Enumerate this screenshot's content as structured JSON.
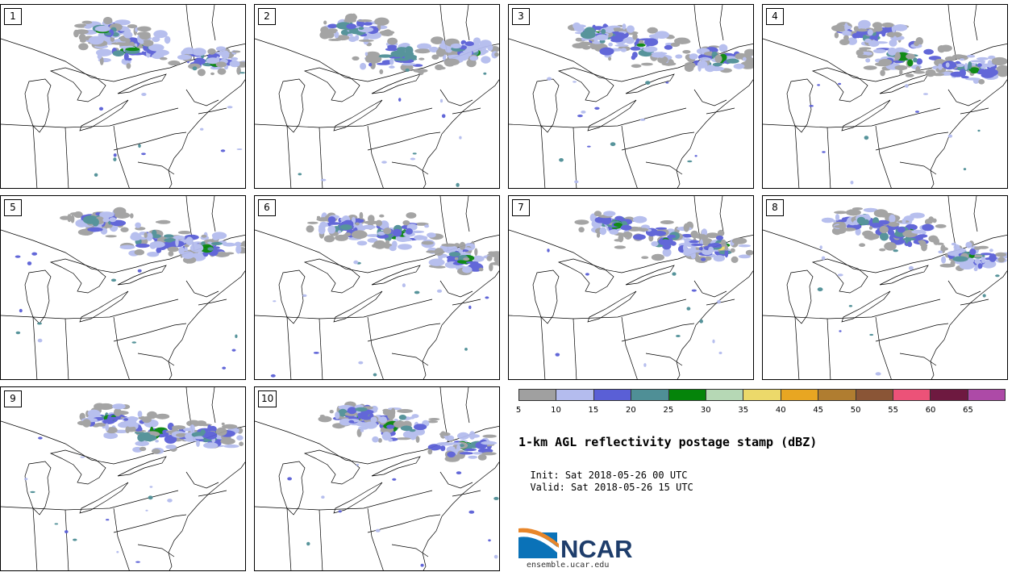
{
  "figure": {
    "title": "1-km AGL reflectivity postage stamp (dBZ)",
    "init_label": "Init:",
    "init_value": "Sat 2018-05-26 00 UTC",
    "valid_label": "Valid:",
    "valid_value": "Sat 2018-05-26 15 UTC"
  },
  "members": [
    "1",
    "2",
    "3",
    "4",
    "5",
    "6",
    "7",
    "8",
    "9",
    "10"
  ],
  "colorbar": {
    "unit": "dBZ",
    "ticks": [
      "5",
      "10",
      "15",
      "20",
      "25",
      "30",
      "35",
      "40",
      "45",
      "50",
      "55",
      "60",
      "65"
    ],
    "colors": [
      "#a0a0a0",
      "#b4bcee",
      "#5a5fd6",
      "#4f8f96",
      "#05840a",
      "#b6d8b5",
      "#ecd96a",
      "#e8a622",
      "#b07d30",
      "#8a5536",
      "#ec5278",
      "#6e1940",
      "#ad4aa7"
    ]
  },
  "logo": {
    "brand": "NCAR",
    "url": "ensemble.ucar.edu"
  },
  "legend_colors": {
    "low": "#a0a0a0",
    "light": "#b4bcee",
    "moderate": "#5a5fd6",
    "teal": "#4f8f96",
    "green": "#05840a",
    "yellow": "#ecd96a",
    "orange": "#e8a622"
  }
}
